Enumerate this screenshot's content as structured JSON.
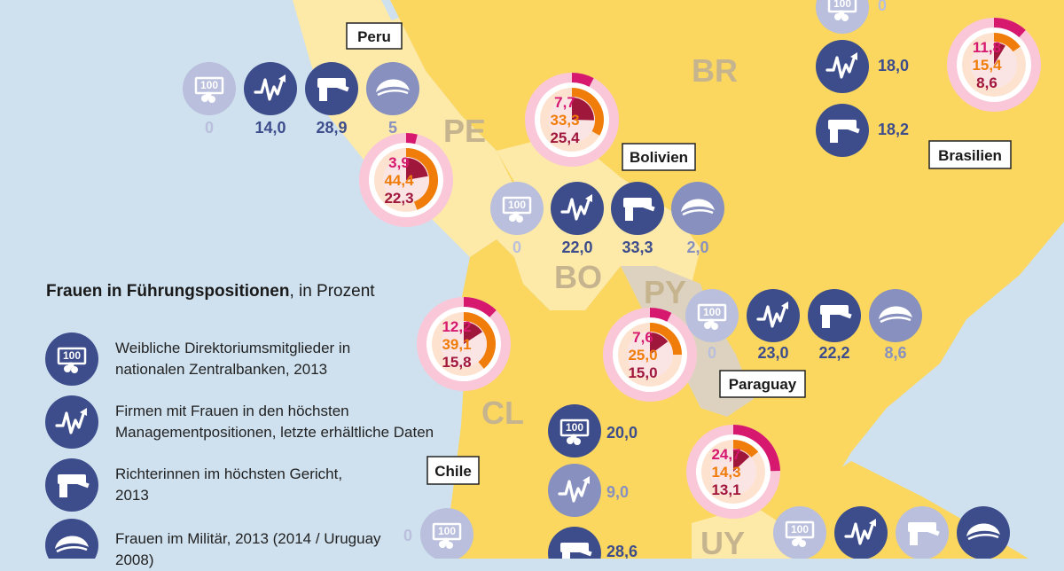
{
  "legend": {
    "title_bold": "Frauen in Führungspositionen",
    "title_rest": ", in Prozent",
    "items": [
      {
        "icon": "banknote-coins-icon",
        "text": "Weibliche Direktoriumsmitglieder in nationalen Zentralbanken, 2013"
      },
      {
        "icon": "chart-arrow-up-icon",
        "text": "Firmen mit Frauen in den höchsten Managementpositionen, letzte erhältliche Daten"
      },
      {
        "icon": "gavel-icon",
        "text": "Richterinnen im höchsten Gericht, 2013"
      },
      {
        "icon": "military-cap-icon",
        "text": "Frauen im Militär, 2013 (2014 / Uruguay 2008)"
      }
    ]
  },
  "country_codes": [
    "BR",
    "PE",
    "BO",
    "PY",
    "CL",
    "UY"
  ],
  "country_labels": [
    "Peru",
    "Bolivien",
    "Brasilien",
    "Paraguay",
    "Chile"
  ],
  "indicators": {
    "peru": {
      "central_bank": "0",
      "management": "14,0",
      "court": "28,9",
      "military": "5"
    },
    "bolivia": {
      "central_bank": "0",
      "management": "22,0",
      "court": "33,3",
      "military": "2,0"
    },
    "brazil": {
      "central_bank": "0",
      "management": "18,0",
      "court": "18,2"
    },
    "paraguay": {
      "central_bank": "0",
      "management": "23,0",
      "court": "22,2",
      "military": "8,6"
    },
    "chile": {
      "central_bank": "20,0",
      "management": "9,0",
      "court": "28,6"
    },
    "uruguay": {
      "central_bank": "0"
    }
  },
  "donuts": [
    {
      "name": "peru",
      "values": [
        "3,9",
        "44,4",
        "22,3"
      ],
      "pct": [
        3.9,
        44.4,
        22.3
      ]
    },
    {
      "name": "bolivia",
      "values": [
        "7,7",
        "33,3",
        "25,4"
      ],
      "pct": [
        7.7,
        33.3,
        25.4
      ]
    },
    {
      "name": "brazil",
      "values": [
        "11,8",
        "15,4",
        "8,6"
      ],
      "pct": [
        11.8,
        15.4,
        8.6
      ]
    },
    {
      "name": "chile",
      "values": [
        "12,2",
        "39,1",
        "15,8"
      ],
      "pct": [
        12.2,
        39.1,
        15.8
      ]
    },
    {
      "name": "paraguay",
      "values": [
        "7,6",
        "25,0",
        "15,0"
      ],
      "pct": [
        7.6,
        25.0,
        15.0
      ]
    },
    {
      "name": "uruguay",
      "values": [
        "24,7",
        "14,3",
        "13,1"
      ],
      "pct": [
        24.7,
        14.3,
        13.1
      ]
    }
  ],
  "colors": {
    "sea": "#cfe1ef",
    "other_land": "#fde9a8",
    "highlight_land": "#fbd760",
    "paraguay_land": "#dcd2bf",
    "icon_dark": "#3d4d8c",
    "icon_light": "#b9bfdc",
    "donut_pink": "#d6186e",
    "donut_orange": "#f07d0a",
    "donut_dark": "#a0173c",
    "donut_halo": "#f9c7d7"
  }
}
